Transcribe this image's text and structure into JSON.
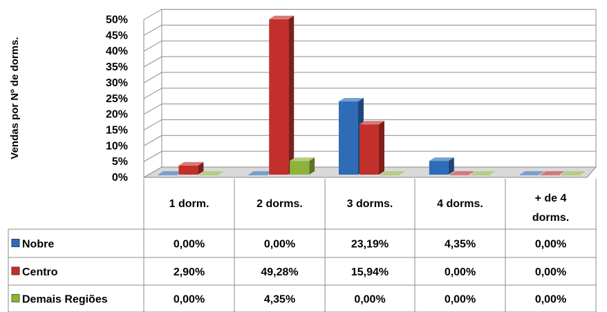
{
  "chart_data": {
    "type": "bar",
    "ylabel": "Vendas por Nº de dorms.",
    "ylim": [
      0,
      50
    ],
    "yticks": [
      "0%",
      "5%",
      "10%",
      "15%",
      "20%",
      "25%",
      "30%",
      "35%",
      "40%",
      "45%",
      "50%"
    ],
    "grid": true,
    "legend": "data-table-left",
    "categories": [
      "1 dorm.",
      "2 dorms.",
      "3 dorms.",
      "4 dorms.",
      "+ de 4 dorms."
    ],
    "series": [
      {
        "name": "Nobre",
        "color": "#2E6CB7",
        "values": [
          0.0,
          0.0,
          23.19,
          4.35,
          0.0
        ],
        "labels": [
          "0,00%",
          "0,00%",
          "23,19%",
          "4,35%",
          "0,00%"
        ]
      },
      {
        "name": "Centro",
        "color": "#C3302C",
        "values": [
          2.9,
          49.28,
          15.94,
          0.0,
          0.0
        ],
        "labels": [
          "2,90%",
          "49,28%",
          "15,94%",
          "0,00%",
          "0,00%"
        ]
      },
      {
        "name": "Demais Regiões",
        "color": "#8DB43A",
        "values": [
          0.0,
          4.35,
          0.0,
          0.0,
          0.0
        ],
        "labels": [
          "0,00%",
          "4,35%",
          "0,00%",
          "0,00%",
          "0,00%"
        ]
      }
    ]
  }
}
